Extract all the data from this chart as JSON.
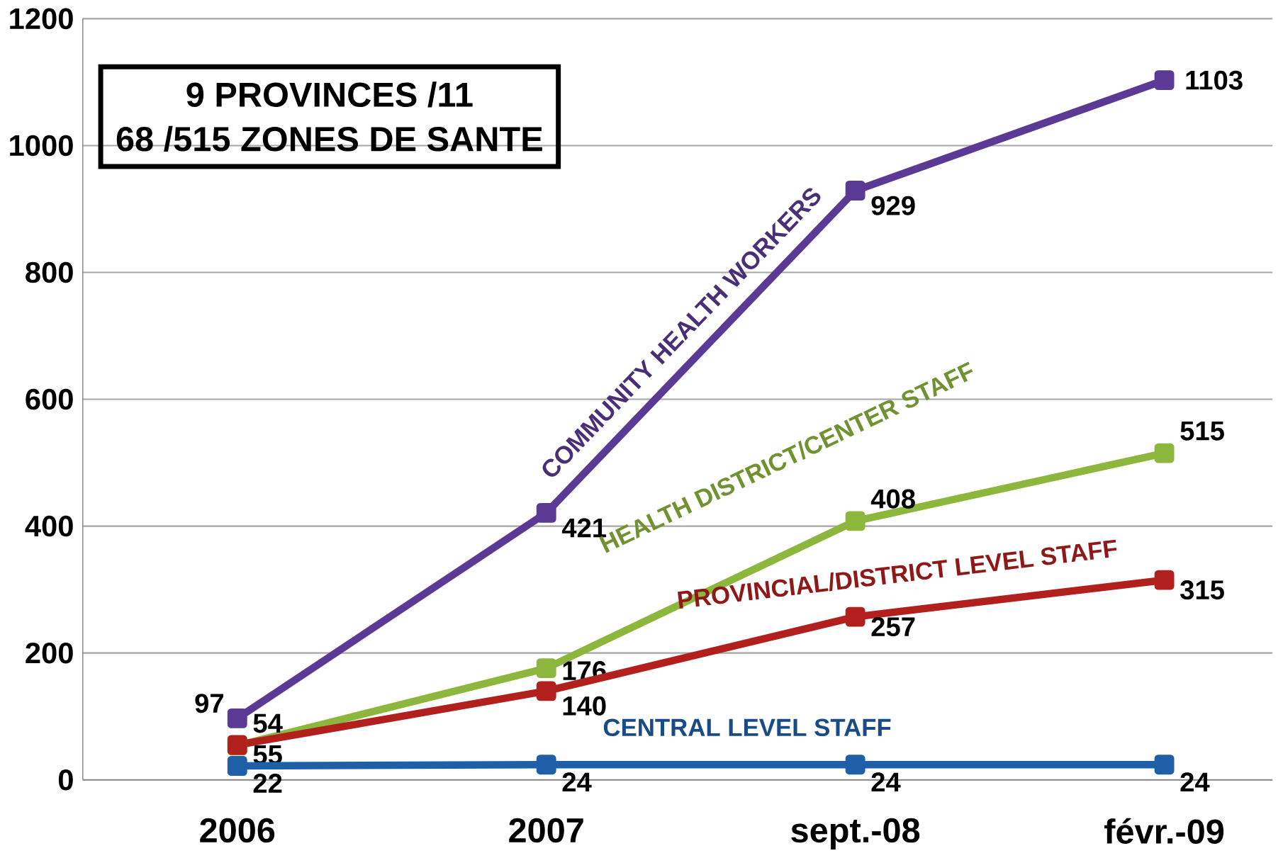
{
  "chart_data": {
    "type": "line",
    "categories": [
      "2006",
      "2007",
      "sept.-08",
      "févr.-09"
    ],
    "series": [
      {
        "name": "COMMUNITY HEALTH WORKERS",
        "color": "#5b3a96",
        "values": [
          97,
          421,
          929,
          1103
        ]
      },
      {
        "name": "HEALTH DISTRICT/CENTER STAFF",
        "color": "#8db63c",
        "values": [
          54,
          176,
          408,
          515
        ]
      },
      {
        "name": "PROVINCIAL/DISTRICT LEVEL STAFF",
        "color": "#b2201e",
        "values": [
          55,
          140,
          257,
          315
        ]
      },
      {
        "name": "CENTRAL LEVEL STAFF",
        "color": "#1f5fa8",
        "values": [
          22,
          24,
          24,
          24
        ]
      }
    ],
    "ylim": [
      0,
      1200
    ],
    "yticks": [
      0,
      200,
      400,
      600,
      800,
      1000,
      1200
    ],
    "grid": "y",
    "marker": "square",
    "line_style": "solid",
    "data_labels": true,
    "annotations": [
      "9 PROVINCES /11",
      "68 /515  ZONES  DE  SANTE"
    ]
  }
}
